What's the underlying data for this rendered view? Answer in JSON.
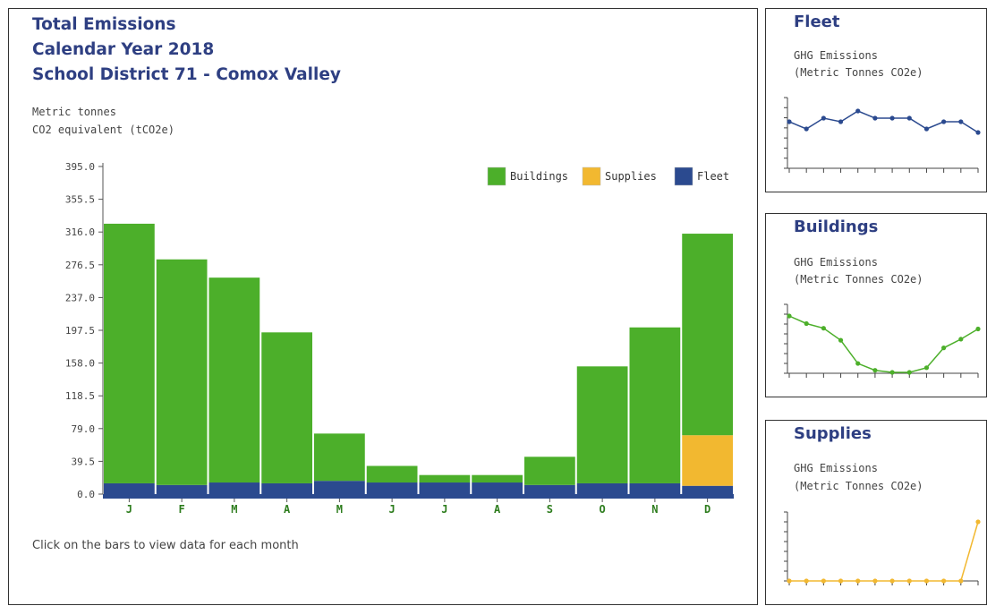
{
  "main": {
    "title_1": "Total Emissions",
    "title_2": "Calendar Year 2018",
    "title_3": "School District 71 - Comox Valley",
    "unit_1": "Metric tonnes",
    "unit_2": "CO2 equivalent (tCO2e)",
    "hint": "Click on the bars to view data for each month"
  },
  "side": {
    "fleet_title": "Fleet",
    "buildings_title": "Buildings",
    "supplies_title": "Supplies",
    "sub_1": "GHG Emissions",
    "sub_2": "(Metric Tonnes CO2e)"
  },
  "colors": {
    "buildings": "#4caf2a",
    "supplies": "#f2b830",
    "fleet": "#2b4a8f",
    "title": "#2e3f82"
  },
  "chart_data": [
    {
      "type": "bar",
      "stacked": true,
      "categories": [
        "J",
        "F",
        "M",
        "A",
        "M",
        "J",
        "J",
        "A",
        "S",
        "O",
        "N",
        "D"
      ],
      "yticks": [
        "395.0",
        "355.5",
        "316.0",
        "276.5",
        "237.0",
        "197.5",
        "158.0",
        "118.5",
        "79.0",
        "39.5",
        "0.0"
      ],
      "ylim": [
        0,
        395
      ],
      "legend_position": "top-right",
      "series": [
        {
          "name": "Fleet",
          "values": [
            13,
            11,
            14,
            13,
            16,
            14,
            14,
            14,
            11,
            13,
            13,
            10
          ]
        },
        {
          "name": "Supplies",
          "values": [
            0,
            0,
            0,
            0,
            0,
            0,
            0,
            0,
            0,
            0,
            0,
            61
          ]
        },
        {
          "name": "Buildings",
          "values": [
            313,
            272,
            247,
            182,
            57,
            20,
            9,
            9,
            34,
            141,
            188,
            243
          ]
        }
      ]
    },
    {
      "type": "line",
      "series": [
        {
          "name": "Fleet",
          "values": [
            13,
            11,
            14,
            13,
            16,
            14,
            14,
            14,
            11,
            13,
            13,
            10
          ]
        }
      ]
    },
    {
      "type": "line",
      "series": [
        {
          "name": "Buildings",
          "values": [
            313,
            272,
            247,
            182,
            57,
            20,
            9,
            9,
            34,
            141,
            188,
            243
          ]
        }
      ]
    },
    {
      "type": "line",
      "series": [
        {
          "name": "Supplies",
          "values": [
            0,
            0,
            0,
            0,
            0,
            0,
            0,
            0,
            0,
            0,
            0,
            61
          ]
        }
      ]
    }
  ]
}
